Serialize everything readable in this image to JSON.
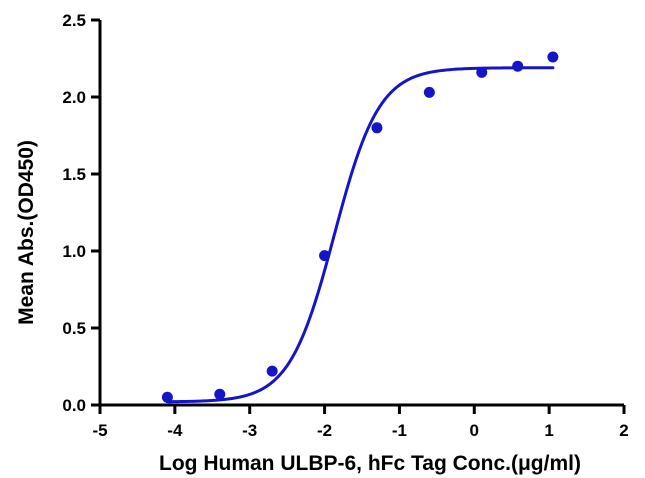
{
  "chart_data": {
    "type": "scatter",
    "title": "",
    "xlabel": "Log Human ULBP-6, hFc Tag Conc.(μg/ml)",
    "ylabel": "Mean Abs.(OD450)",
    "xlim": [
      -5,
      2
    ],
    "ylim": [
      0,
      2.5
    ],
    "x_ticks": [
      -5,
      -4,
      -3,
      -2,
      -1,
      0,
      1,
      2
    ],
    "y_ticks": [
      0.0,
      0.5,
      1.0,
      1.5,
      2.0,
      2.5
    ],
    "x_tick_labels": [
      "-5",
      "-4",
      "-3",
      "-2",
      "-1",
      "0",
      "1",
      "2"
    ],
    "y_tick_labels": [
      "0.0",
      "0.5",
      "1.0",
      "1.5",
      "2.0",
      "2.5"
    ],
    "grid": false,
    "legend": "none",
    "series": [
      {
        "color": "#1515c8",
        "points": [
          {
            "x": -4.1,
            "y": 0.05
          },
          {
            "x": -3.4,
            "y": 0.07
          },
          {
            "x": -2.7,
            "y": 0.22
          },
          {
            "x": -2.0,
            "y": 0.97
          },
          {
            "x": -1.3,
            "y": 1.8
          },
          {
            "x": -0.6,
            "y": 2.03
          },
          {
            "x": 0.1,
            "y": 2.16
          },
          {
            "x": 0.58,
            "y": 2.2
          },
          {
            "x": 1.05,
            "y": 2.26
          }
        ],
        "fit": {
          "model": "4PL",
          "bottom": 0.02,
          "top": 2.19,
          "log_ec50": -1.87,
          "hill_slope": 1.45,
          "x_range": [
            -4.1,
            1.05
          ]
        }
      }
    ]
  }
}
